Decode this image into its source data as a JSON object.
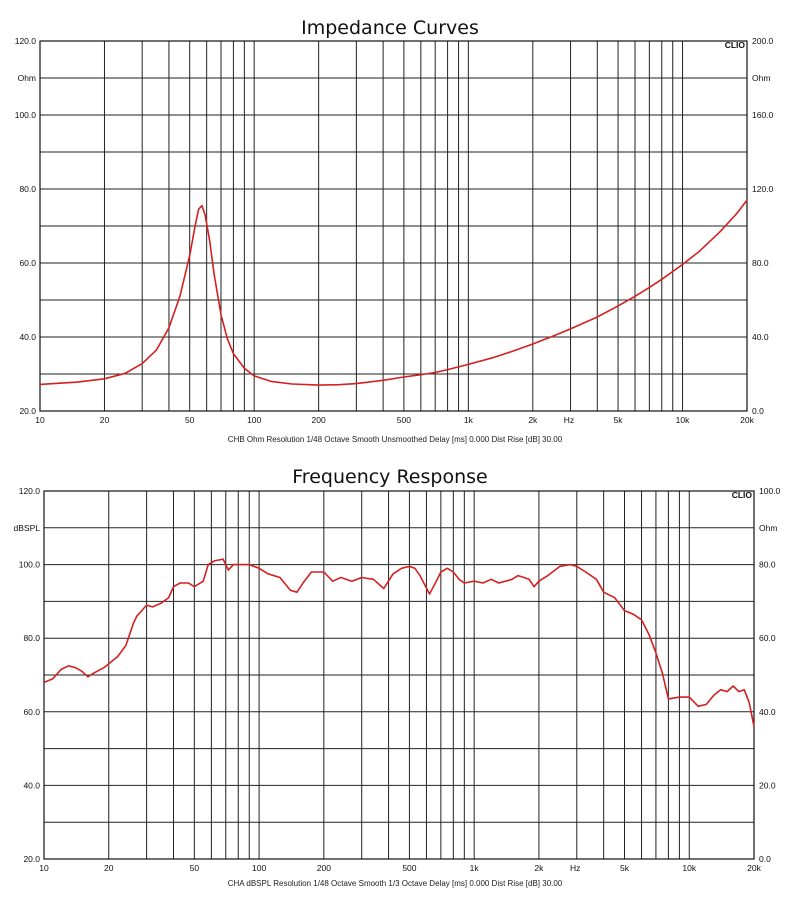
{
  "chart_data": [
    {
      "type": "line",
      "title": "Impedance Curves",
      "caption": "CHB Ohm Resolution 1/48 Octave Smooth Unsmoothed Delay [ms] 0.000 Dist Rise [dB] 30.00",
      "brand": "CLIO",
      "x_scale": "log",
      "xlim": [
        10,
        20000
      ],
      "x_ticks": [
        {
          "v": 10,
          "label": "10"
        },
        {
          "v": 20,
          "label": "20"
        },
        {
          "v": 50,
          "label": "50"
        },
        {
          "v": 100,
          "label": "100"
        },
        {
          "v": 200,
          "label": "200"
        },
        {
          "v": 500,
          "label": "500"
        },
        {
          "v": 1000,
          "label": "1k"
        },
        {
          "v": 2000,
          "label": "2k"
        },
        {
          "v": 5000,
          "label": "5k"
        },
        {
          "v": 10000,
          "label": "10k"
        },
        {
          "v": 20000,
          "label": "20k"
        }
      ],
      "x_unit_label": "Hz",
      "ylim_left": [
        20,
        120
      ],
      "left_ticks": [
        "20.0",
        "",
        "40.0",
        "",
        "60.0",
        "",
        "80.0",
        "",
        "100.0",
        "Ohm",
        "120.0"
      ],
      "ylim_right": [
        0,
        200
      ],
      "right_ticks": [
        "0.0",
        "",
        "40.0",
        "",
        "80.0",
        "",
        "120.0",
        "",
        "160.0",
        "Ohm",
        "200.0"
      ],
      "grid": true,
      "line_color": "#d42020",
      "series": [
        {
          "axis": "left",
          "points": [
            [
              10,
              27.2
            ],
            [
              15,
              27.8
            ],
            [
              20,
              28.7
            ],
            [
              25,
              30.2
            ],
            [
              30,
              32.8
            ],
            [
              35,
              36.5
            ],
            [
              40,
              42.5
            ],
            [
              45,
              51.0
            ],
            [
              50,
              62.0
            ],
            [
              53,
              70.0
            ],
            [
              55,
              74.5
            ],
            [
              57,
              75.5
            ],
            [
              59,
              73.0
            ],
            [
              62,
              66.0
            ],
            [
              65,
              57.0
            ],
            [
              70,
              46.0
            ],
            [
              75,
              39.5
            ],
            [
              80,
              35.5
            ],
            [
              90,
              31.5
            ],
            [
              100,
              29.5
            ],
            [
              120,
              28.0
            ],
            [
              150,
              27.3
            ],
            [
              200,
              27.0
            ],
            [
              250,
              27.1
            ],
            [
              300,
              27.4
            ],
            [
              400,
              28.3
            ],
            [
              500,
              29.2
            ],
            [
              600,
              29.8
            ],
            [
              700,
              30.4
            ],
            [
              800,
              31.2
            ],
            [
              1000,
              32.6
            ],
            [
              1300,
              34.4
            ],
            [
              1600,
              36.1
            ],
            [
              2000,
              38.1
            ],
            [
              2500,
              40.3
            ],
            [
              3000,
              42.2
            ],
            [
              4000,
              45.4
            ],
            [
              5000,
              48.4
            ],
            [
              6000,
              51.0
            ],
            [
              7000,
              53.4
            ],
            [
              8000,
              55.6
            ],
            [
              10000,
              59.6
            ],
            [
              12000,
              63.2
            ],
            [
              15000,
              68.5
            ],
            [
              18000,
              73.5
            ],
            [
              20000,
              77.0
            ]
          ]
        }
      ]
    },
    {
      "type": "line",
      "title": "Frequency Response",
      "caption": "CHA dBSPL Resolution 1/48 Octave Smooth 1/3 Octave Delay [ms] 0.000 Dist Rise [dB] 30.00",
      "brand": "CLIO",
      "x_scale": "log",
      "xlim": [
        10,
        20000
      ],
      "x_ticks": [
        {
          "v": 10,
          "label": "10"
        },
        {
          "v": 20,
          "label": "20"
        },
        {
          "v": 50,
          "label": "50"
        },
        {
          "v": 100,
          "label": "100"
        },
        {
          "v": 200,
          "label": "200"
        },
        {
          "v": 500,
          "label": "500"
        },
        {
          "v": 1000,
          "label": "1k"
        },
        {
          "v": 2000,
          "label": "2k"
        },
        {
          "v": 5000,
          "label": "5k"
        },
        {
          "v": 10000,
          "label": "10k"
        },
        {
          "v": 20000,
          "label": "20k"
        }
      ],
      "x_unit_label": "Hz",
      "ylim_left": [
        20,
        120
      ],
      "left_ticks": [
        "20.0",
        "",
        "40.0",
        "",
        "60.0",
        "",
        "80.0",
        "",
        "100.0",
        "dBSPL",
        "120.0"
      ],
      "ylim_right": [
        0,
        100
      ],
      "right_ticks": [
        "0.0",
        "",
        "20.0",
        "",
        "40.0",
        "",
        "60.0",
        "",
        "80.0",
        "Ohm",
        "100.0"
      ],
      "grid": true,
      "line_color": "#d42020",
      "series": [
        {
          "axis": "left",
          "points": [
            [
              10,
              68.0
            ],
            [
              11,
              69.0
            ],
            [
              12,
              71.5
            ],
            [
              13,
              72.5
            ],
            [
              14,
              72.0
            ],
            [
              15,
              71.0
            ],
            [
              16,
              69.5
            ],
            [
              17,
              70.5
            ],
            [
              19,
              72.0
            ],
            [
              22,
              75.0
            ],
            [
              24,
              78.0
            ],
            [
              25,
              81.0
            ],
            [
              26,
              84.0
            ],
            [
              27,
              86.0
            ],
            [
              28,
              87.0
            ],
            [
              30,
              89.0
            ],
            [
              32,
              88.5
            ],
            [
              35,
              89.5
            ],
            [
              38,
              91.0
            ],
            [
              40,
              94.0
            ],
            [
              43,
              95.0
            ],
            [
              47,
              95.0
            ],
            [
              50,
              94.0
            ],
            [
              55,
              95.5
            ],
            [
              58,
              100.0
            ],
            [
              62,
              101.0
            ],
            [
              68,
              101.5
            ],
            [
              72,
              98.5
            ],
            [
              76,
              100.0
            ],
            [
              80,
              100.0
            ],
            [
              90,
              100.0
            ],
            [
              100,
              99.0
            ],
            [
              110,
              97.5
            ],
            [
              125,
              96.5
            ],
            [
              140,
              93.0
            ],
            [
              150,
              92.5
            ],
            [
              160,
              95.0
            ],
            [
              175,
              98.0
            ],
            [
              200,
              98.0
            ],
            [
              220,
              95.5
            ],
            [
              240,
              96.5
            ],
            [
              270,
              95.5
            ],
            [
              300,
              96.5
            ],
            [
              340,
              96.0
            ],
            [
              380,
              93.5
            ],
            [
              420,
              97.5
            ],
            [
              460,
              99.0
            ],
            [
              500,
              99.5
            ],
            [
              530,
              99.0
            ],
            [
              560,
              97.0
            ],
            [
              620,
              92.0
            ],
            [
              660,
              95.0
            ],
            [
              700,
              98.0
            ],
            [
              750,
              99.0
            ],
            [
              800,
              98.0
            ],
            [
              850,
              96.0
            ],
            [
              900,
              95.0
            ],
            [
              1000,
              95.5
            ],
            [
              1100,
              95.0
            ],
            [
              1200,
              96.0
            ],
            [
              1300,
              95.0
            ],
            [
              1400,
              95.5
            ],
            [
              1500,
              96.0
            ],
            [
              1600,
              97.0
            ],
            [
              1800,
              96.0
            ],
            [
              1900,
              94.0
            ],
            [
              2000,
              95.5
            ],
            [
              2200,
              97.0
            ],
            [
              2500,
              99.5
            ],
            [
              2800,
              100.0
            ],
            [
              3000,
              99.5
            ],
            [
              3300,
              98.0
            ],
            [
              3700,
              96.0
            ],
            [
              4000,
              92.5
            ],
            [
              4500,
              91.0
            ],
            [
              5000,
              87.5
            ],
            [
              5500,
              86.5
            ],
            [
              6000,
              85.0
            ],
            [
              6500,
              81.0
            ],
            [
              7000,
              76.0
            ],
            [
              7500,
              70.5
            ],
            [
              8000,
              63.5
            ],
            [
              9000,
              64.0
            ],
            [
              10000,
              64.0
            ],
            [
              11000,
              61.5
            ],
            [
              12000,
              62.0
            ],
            [
              13000,
              64.5
            ],
            [
              14000,
              66.0
            ],
            [
              15000,
              65.5
            ],
            [
              16000,
              67.0
            ],
            [
              17000,
              65.5
            ],
            [
              18000,
              66.0
            ],
            [
              19000,
              62.5
            ],
            [
              20000,
              56.0
            ]
          ]
        }
      ]
    }
  ]
}
